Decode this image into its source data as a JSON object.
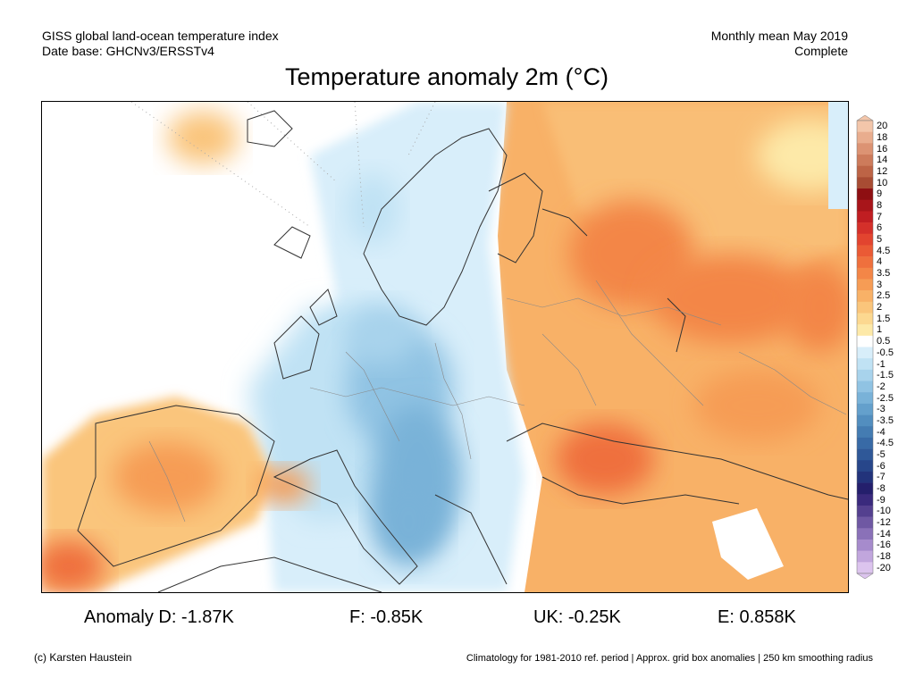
{
  "header": {
    "left_line1": "GISS global land-ocean temperature index",
    "left_line2": "Date base: GHCNv3/ERSSTv4",
    "right_line1": "Monthly mean May 2019",
    "right_line2": "Complete"
  },
  "title": "Temperature anomaly 2m (°C)",
  "colorbar": {
    "levels": [
      "20",
      "18",
      "16",
      "14",
      "12",
      "10",
      "9",
      "8",
      "7",
      "6",
      "5",
      "4.5",
      "4",
      "3.5",
      "3",
      "2.5",
      "2",
      "1.5",
      "1",
      "0.5",
      "-0.5",
      "-1",
      "-1.5",
      "-2",
      "-2.5",
      "-3",
      "-3.5",
      "-4",
      "-4.5",
      "-5",
      "-6",
      "-7",
      "-8",
      "-9",
      "-10",
      "-12",
      "-14",
      "-16",
      "-18",
      "-20"
    ],
    "colors": [
      "#f3c6aa",
      "#e9ad8e",
      "#dc9373",
      "#cd7b5b",
      "#bd6446",
      "#a84c33",
      "#8e0f12",
      "#a8151a",
      "#c01e22",
      "#d4302a",
      "#e2442f",
      "#ea5a35",
      "#ef703d",
      "#f38647",
      "#f69c55",
      "#f8b167",
      "#fac57b",
      "#fcd890",
      "#fde9a8",
      "#ffffff",
      "#d8eefa",
      "#c0e2f4",
      "#a8d3ec",
      "#90c3e3",
      "#79b2d8",
      "#64a0cc",
      "#528ebf",
      "#447cb2",
      "#386aa6",
      "#2f5898",
      "#27468a",
      "#22337b",
      "#241f6c",
      "#3a2a7d",
      "#54408f",
      "#6f58a3",
      "#8a71b8",
      "#a68bcc",
      "#c1a6dd",
      "#dcc4ee"
    ]
  },
  "stats": {
    "d": "Anomaly D: -1.87K",
    "f": "F: -0.85K",
    "uk": "UK: -0.25K",
    "e": "E: 0.858K"
  },
  "footer": {
    "credit": "(c) Karsten Haustein",
    "note": "Climatology for 1981-2010 ref. period | Approx. grid box anomalies | 250 km smoothing radius"
  }
}
